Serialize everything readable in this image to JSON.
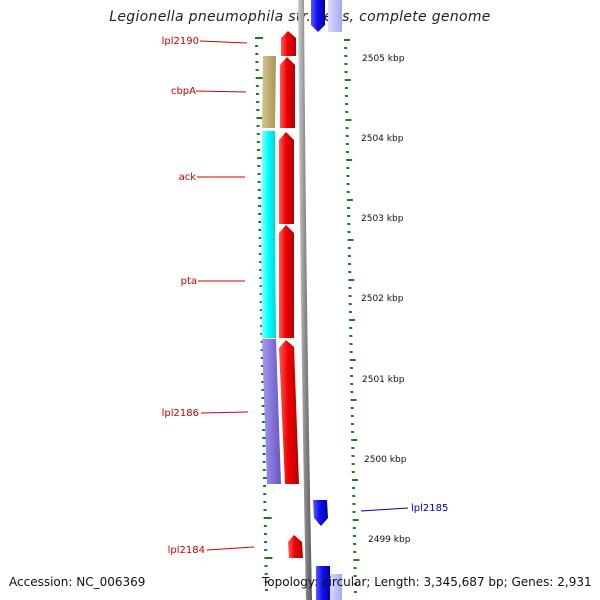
{
  "title": "Legionella pneumophila str. Lens, complete genome",
  "footer": {
    "accession": "Accession: NC_006369",
    "topology": "Topology: circular; Length: 3,345,687 bp; Genes: 2,931"
  },
  "colors": {
    "forward_gene": "#e00000",
    "reverse_gene": "#1a1aee",
    "label_forward": "#cc0000",
    "label_reverse": "#0000bb",
    "cog_cbpA": "#bfae6e",
    "cog_ack": "#00ffff",
    "cog_pta": "#00ffff",
    "cog_lpl2186": "#8070d8",
    "backbone": "#8c8c8c",
    "tick": "#1c7c1c"
  },
  "scale_labels": [
    "2505 kbp",
    "2504 kbp",
    "2503 kbp",
    "2502 kbp",
    "2501 kbp",
    "2500 kbp",
    "2499 kbp"
  ],
  "gene_labels": [
    {
      "text": "lpl2190",
      "strand": "forward"
    },
    {
      "text": "cbpA",
      "strand": "forward"
    },
    {
      "text": "ack",
      "strand": "forward"
    },
    {
      "text": "pta",
      "strand": "forward"
    },
    {
      "text": "lpl2186",
      "strand": "forward"
    },
    {
      "text": "lpl2185",
      "strand": "reverse"
    },
    {
      "text": "lpl2184",
      "strand": "forward"
    }
  ]
}
